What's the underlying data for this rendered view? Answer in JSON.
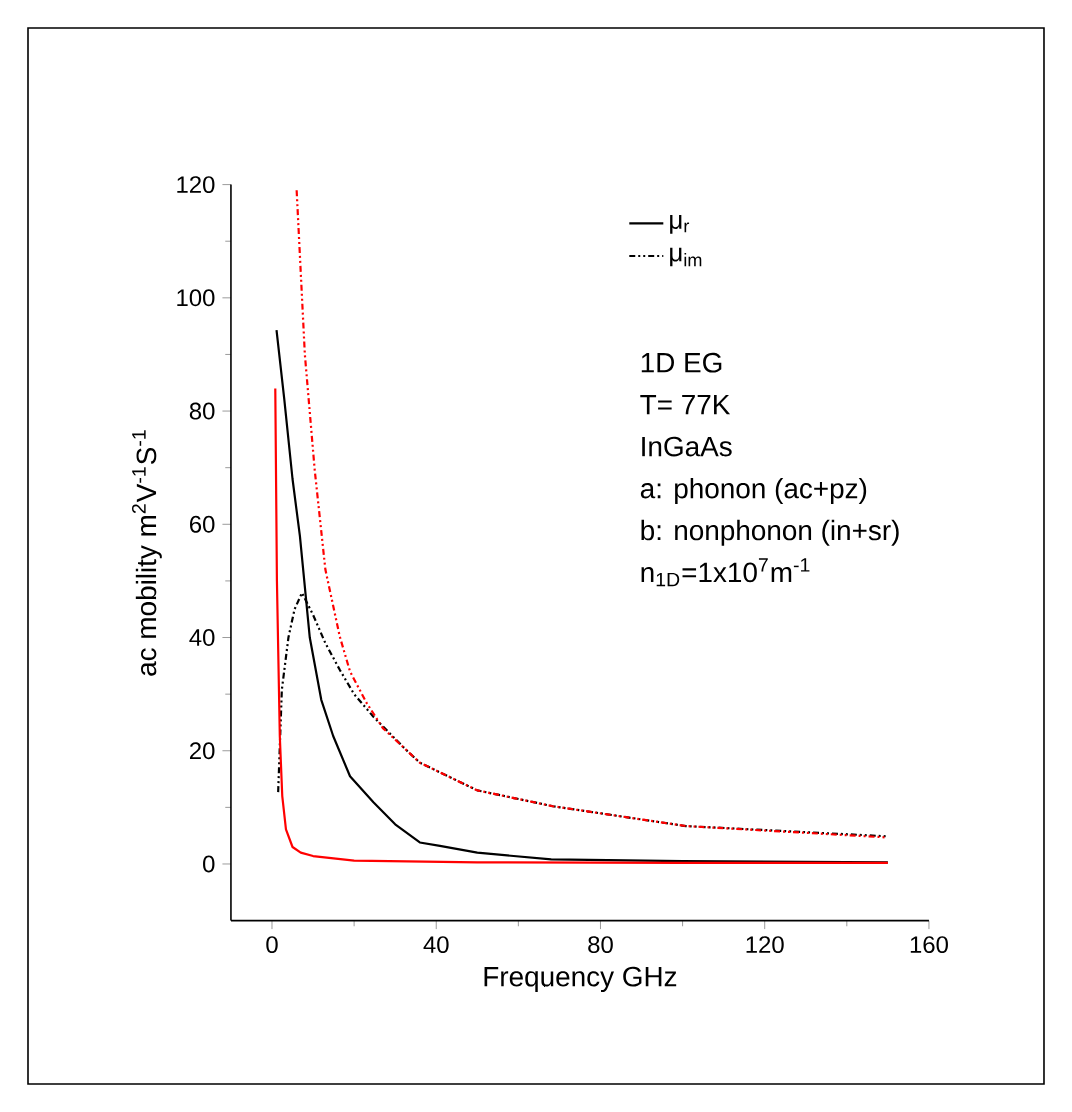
{
  "chart_data": {
    "type": "line",
    "xlabel": "Frequency GHz",
    "ylabel": "ac mobility m$^{2}$V$^{-1}$S$^{-1}$",
    "xlim": [
      -10,
      160
    ],
    "ylim": [
      -10,
      120
    ],
    "xticks": [
      0,
      40,
      80,
      120,
      160
    ],
    "yticks": [
      0,
      20,
      40,
      60,
      80,
      100,
      120
    ],
    "legend": "top right",
    "grid": false,
    "series": [
      {
        "name": "μ$_{r}$",
        "color": "#000000",
        "line_style": "solid",
        "x": [
          1.1,
          3,
          5,
          6.8,
          9.2,
          12,
          14.9,
          19,
          24.7,
          30,
          36,
          40.9,
          50,
          68,
          100,
          150
        ],
        "values": [
          94.3,
          82,
          68,
          57.9,
          40,
          29,
          22.6,
          15.5,
          10.9,
          7,
          3.8,
          3.2,
          2,
          0.8,
          0.5,
          0.3
        ]
      },
      {
        "name": "μ$_{im}$",
        "color": "#000000",
        "line_style": "dashdotdot",
        "x": [
          1.5,
          2.4,
          4,
          5.5,
          7.3,
          10,
          13,
          16.5,
          20,
          24.7,
          32.6,
          36,
          50,
          68.4,
          100.8,
          149.5
        ],
        "values": [
          12.7,
          30.8,
          40,
          45,
          47.9,
          44,
          39,
          34.3,
          30,
          26,
          20.2,
          17.9,
          13,
          10.2,
          6.7,
          4.9
        ]
      },
      {
        "color": "#ff0000",
        "line_style": "solid",
        "x": [
          0.8,
          1.2,
          1.9,
          2.5,
          3.4,
          5,
          7,
          10,
          20,
          50,
          100,
          150
        ],
        "values": [
          84,
          50,
          22.6,
          12,
          6.1,
          3,
          2,
          1.4,
          0.6,
          0.3,
          0.2,
          0.2
        ]
      },
      {
        "color": "#ff0000",
        "line_style": "dashdotdot",
        "x": [
          6,
          8,
          10.4,
          13,
          16.5,
          19,
          23,
          27,
          32.6,
          36,
          50,
          68.4,
          100.8,
          149.5
        ],
        "values": [
          119,
          90,
          69.6,
          52,
          40.2,
          34,
          28.5,
          24,
          20.2,
          17.9,
          13,
          10.2,
          6.7,
          4.7
        ]
      }
    ],
    "annotations": [
      "1D EG",
      "T= 77K",
      "InGaAs",
      "a: phonon (ac+pz)",
      "b: nonphonon (in+sr)",
      "n$_{1D}$=1x10$^{7}$m$^{-1}$"
    ]
  }
}
